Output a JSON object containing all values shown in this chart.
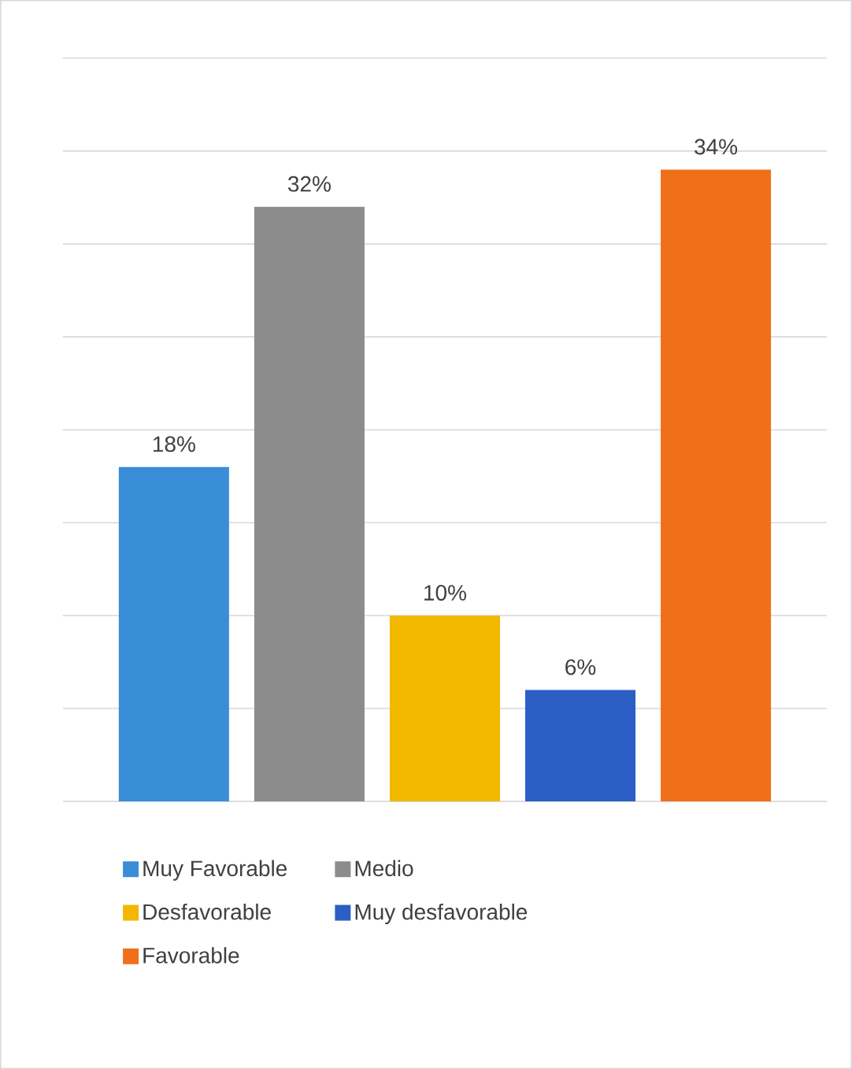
{
  "chart_data": {
    "type": "bar",
    "categories": [
      null
    ],
    "series": [
      {
        "name": "Muy Favorable",
        "color": "#3a8ed8",
        "values": [
          18
        ],
        "value_labels": [
          "18%"
        ]
      },
      {
        "name": "Medio",
        "color": "#8c8c8c",
        "values": [
          32
        ],
        "value_labels": [
          "32%"
        ]
      },
      {
        "name": "Desfavorable",
        "color": "#f2b800",
        "values": [
          10
        ],
        "value_labels": [
          "10%"
        ]
      },
      {
        "name": "Muy desfavorable",
        "color": "#2b5fc6",
        "values": [
          6
        ],
        "value_labels": [
          "6%"
        ]
      },
      {
        "name": "Favorable",
        "color": "#f0701a",
        "values": [
          34
        ],
        "value_labels": [
          "34%"
        ]
      }
    ],
    "ylim": [
      0,
      40
    ],
    "yticks": [
      {
        "value": 0,
        "label": null
      },
      {
        "value": 5,
        "label": null
      },
      {
        "value": 10,
        "label": null
      },
      {
        "value": 15,
        "label": null
      },
      {
        "value": 20,
        "label": null
      },
      {
        "value": 25,
        "label": null
      },
      {
        "value": 30,
        "label": null
      },
      {
        "value": 35,
        "label": null
      },
      {
        "value": 40,
        "label": null
      }
    ],
    "grid": "y",
    "legend": "bottom"
  }
}
